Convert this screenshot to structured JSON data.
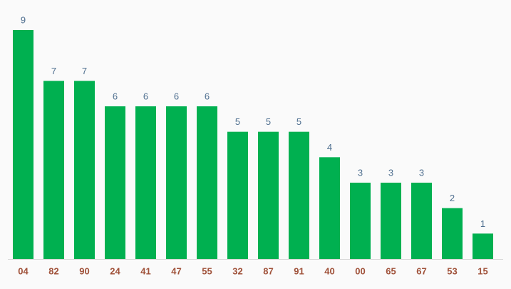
{
  "chart_data": {
    "type": "bar",
    "categories": [
      "04",
      "82",
      "90",
      "24",
      "41",
      "47",
      "55",
      "32",
      "87",
      "91",
      "40",
      "00",
      "65",
      "67",
      "53",
      "15"
    ],
    "values": [
      9,
      7,
      7,
      6,
      6,
      6,
      6,
      5,
      5,
      5,
      4,
      3,
      3,
      3,
      2,
      1
    ],
    "color": "#00b050"
  }
}
